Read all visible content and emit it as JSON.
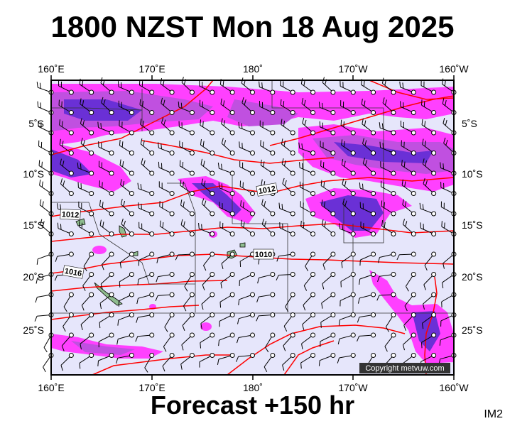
{
  "title": "1800 NZST Mon 18 Aug 2025",
  "footer": "Forecast +150 hr",
  "corner_code": "IM2",
  "copyright": "Copyright metvuw.com",
  "axes": {
    "lon_labels": [
      "160˚E",
      "170˚E",
      "180˚",
      "170˚W",
      "160˚W"
    ],
    "lat_labels_left": [
      "5˚S",
      "10˚S",
      "15˚S",
      "20˚S",
      "25˚S"
    ],
    "lat_labels_right": [
      "5˚S",
      "10˚S",
      "15˚S",
      "20˚S",
      "25˚S"
    ]
  },
  "isobars": [
    {
      "label": "1012",
      "note": "north-central"
    },
    {
      "label": "1012",
      "note": "west"
    },
    {
      "label": "1010",
      "note": "central"
    },
    {
      "label": "1016",
      "note": "southwest"
    }
  ],
  "colors": {
    "ocean": "#e6e6fb",
    "precip_light": "#ff00ff",
    "precip_mid": "#b43cdc",
    "precip_heavy": "#5a28d2",
    "isobar": "#ff0000",
    "land": "#8fbc8f"
  }
}
